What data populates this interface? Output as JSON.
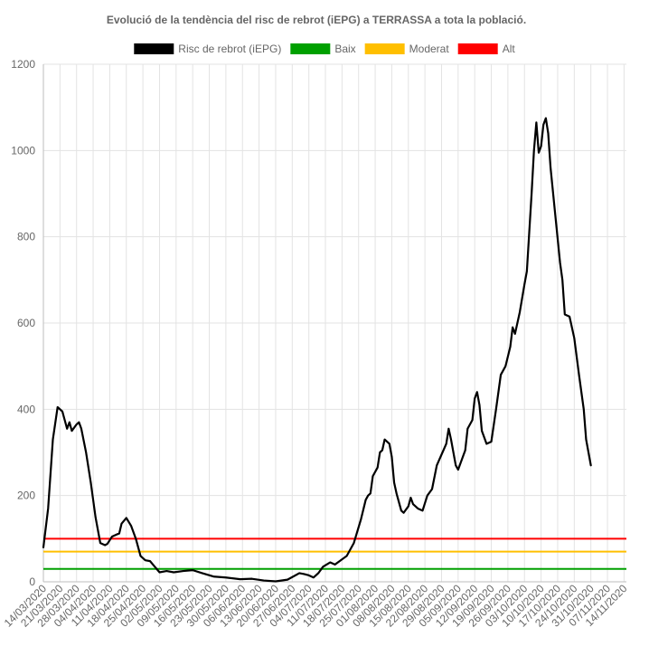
{
  "chart_data": {
    "type": "line",
    "title": "Evolució de la tendència del risc de rebrot (iEPG) a TERRASSA a tota la població.",
    "xlabel": "",
    "ylabel": "",
    "ylim": [
      0,
      1200
    ],
    "yticks": [
      "0",
      "200",
      "400",
      "600",
      "800",
      "1000",
      "1200"
    ],
    "x_start": "14/03/2020",
    "x_end": "15/11/2020",
    "xticks": [
      "14/03/2020",
      "21/03/2020",
      "28/03/2020",
      "04/04/2020",
      "11/04/2020",
      "18/04/2020",
      "25/04/2020",
      "02/05/2020",
      "09/05/2020",
      "16/05/2020",
      "23/05/2020",
      "30/05/2020",
      "06/06/2020",
      "13/06/2020",
      "20/06/2020",
      "27/06/2020",
      "04/07/2020",
      "11/07/2020",
      "18/07/2020",
      "25/07/2020",
      "01/08/2020",
      "08/08/2020",
      "15/08/2020",
      "22/08/2020",
      "29/08/2020",
      "05/09/2020",
      "12/09/2020",
      "19/09/2020",
      "26/09/2020",
      "03/10/2020",
      "10/10/2020",
      "17/10/2020",
      "24/10/2020",
      "31/10/2020",
      "07/11/2020",
      "14/11/2020"
    ],
    "grid": true,
    "legend_position": "top-center",
    "series": [
      {
        "name": "Risc de rebrot (iEPG)",
        "color": "#000000",
        "kind": "line",
        "points": [
          [
            "14/03/2020",
            80
          ],
          [
            "16/03/2020",
            170
          ],
          [
            "18/03/2020",
            330
          ],
          [
            "20/03/2020",
            405
          ],
          [
            "22/03/2020",
            395
          ],
          [
            "23/03/2020",
            375
          ],
          [
            "24/03/2020",
            355
          ],
          [
            "25/03/2020",
            370
          ],
          [
            "26/03/2020",
            350
          ],
          [
            "28/03/2020",
            365
          ],
          [
            "29/03/2020",
            370
          ],
          [
            "30/03/2020",
            355
          ],
          [
            "01/04/2020",
            300
          ],
          [
            "03/04/2020",
            230
          ],
          [
            "05/04/2020",
            150
          ],
          [
            "07/04/2020",
            90
          ],
          [
            "09/04/2020",
            85
          ],
          [
            "10/04/2020",
            88
          ],
          [
            "12/04/2020",
            105
          ],
          [
            "14/04/2020",
            110
          ],
          [
            "15/04/2020",
            112
          ],
          [
            "16/04/2020",
            135
          ],
          [
            "18/04/2020",
            148
          ],
          [
            "20/04/2020",
            130
          ],
          [
            "22/04/2020",
            100
          ],
          [
            "24/04/2020",
            60
          ],
          [
            "26/04/2020",
            50
          ],
          [
            "28/04/2020",
            48
          ],
          [
            "30/04/2020",
            35
          ],
          [
            "02/05/2020",
            22
          ],
          [
            "05/05/2020",
            25
          ],
          [
            "08/05/2020",
            22
          ],
          [
            "12/05/2020",
            25
          ],
          [
            "16/05/2020",
            27
          ],
          [
            "20/05/2020",
            20
          ],
          [
            "25/05/2020",
            12
          ],
          [
            "30/05/2020",
            10
          ],
          [
            "05/06/2020",
            6
          ],
          [
            "10/06/2020",
            7
          ],
          [
            "15/06/2020",
            3
          ],
          [
            "20/06/2020",
            1
          ],
          [
            "25/06/2020",
            5
          ],
          [
            "30/06/2020",
            20
          ],
          [
            "02/07/2020",
            18
          ],
          [
            "04/07/2020",
            15
          ],
          [
            "06/07/2020",
            10
          ],
          [
            "08/07/2020",
            20
          ],
          [
            "10/07/2020",
            35
          ],
          [
            "13/07/2020",
            45
          ],
          [
            "15/07/2020",
            40
          ],
          [
            "17/07/2020",
            48
          ],
          [
            "20/07/2020",
            60
          ],
          [
            "23/07/2020",
            90
          ],
          [
            "26/07/2020",
            145
          ],
          [
            "28/07/2020",
            190
          ],
          [
            "29/07/2020",
            200
          ],
          [
            "30/07/2020",
            205
          ],
          [
            "31/07/2020",
            245
          ],
          [
            "02/08/2020",
            265
          ],
          [
            "03/08/2020",
            300
          ],
          [
            "04/08/2020",
            305
          ],
          [
            "05/08/2020",
            330
          ],
          [
            "06/08/2020",
            325
          ],
          [
            "07/08/2020",
            320
          ],
          [
            "08/08/2020",
            290
          ],
          [
            "09/08/2020",
            230
          ],
          [
            "10/08/2020",
            205
          ],
          [
            "12/08/2020",
            165
          ],
          [
            "13/08/2020",
            160
          ],
          [
            "15/08/2020",
            175
          ],
          [
            "16/08/2020",
            195
          ],
          [
            "17/08/2020",
            180
          ],
          [
            "19/08/2020",
            170
          ],
          [
            "21/08/2020",
            165
          ],
          [
            "23/08/2020",
            200
          ],
          [
            "25/08/2020",
            215
          ],
          [
            "27/08/2020",
            270
          ],
          [
            "29/08/2020",
            295
          ],
          [
            "31/08/2020",
            320
          ],
          [
            "01/09/2020",
            355
          ],
          [
            "02/09/2020",
            330
          ],
          [
            "04/09/2020",
            270
          ],
          [
            "05/09/2020",
            260
          ],
          [
            "07/09/2020",
            290
          ],
          [
            "08/09/2020",
            305
          ],
          [
            "09/09/2020",
            355
          ],
          [
            "11/09/2020",
            375
          ],
          [
            "12/09/2020",
            425
          ],
          [
            "13/09/2020",
            440
          ],
          [
            "14/09/2020",
            410
          ],
          [
            "15/09/2020",
            350
          ],
          [
            "17/09/2020",
            320
          ],
          [
            "19/09/2020",
            325
          ],
          [
            "21/09/2020",
            400
          ],
          [
            "23/09/2020",
            480
          ],
          [
            "25/09/2020",
            500
          ],
          [
            "27/09/2020",
            545
          ],
          [
            "28/09/2020",
            590
          ],
          [
            "29/09/2020",
            575
          ],
          [
            "30/09/2020",
            600
          ],
          [
            "01/10/2020",
            625
          ],
          [
            "03/10/2020",
            690
          ],
          [
            "04/10/2020",
            720
          ],
          [
            "05/10/2020",
            810
          ],
          [
            "06/10/2020",
            900
          ],
          [
            "07/10/2020",
            1000
          ],
          [
            "08/10/2020",
            1065
          ],
          [
            "09/10/2020",
            995
          ],
          [
            "10/10/2020",
            1010
          ],
          [
            "11/10/2020",
            1060
          ],
          [
            "12/10/2020",
            1075
          ],
          [
            "13/10/2020",
            1040
          ],
          [
            "14/10/2020",
            960
          ],
          [
            "16/10/2020",
            850
          ],
          [
            "18/10/2020",
            740
          ],
          [
            "19/10/2020",
            700
          ],
          [
            "20/10/2020",
            620
          ],
          [
            "22/10/2020",
            615
          ],
          [
            "24/10/2020",
            565
          ],
          [
            "26/10/2020",
            480
          ],
          [
            "28/10/2020",
            400
          ],
          [
            "29/10/2020",
            330
          ],
          [
            "31/10/2020",
            270
          ]
        ]
      },
      {
        "name": "Baix",
        "color": "#00a000",
        "kind": "threshold",
        "value": 30
      },
      {
        "name": "Moderat",
        "color": "#ffbf00",
        "kind": "threshold",
        "value": 70
      },
      {
        "name": "Alt",
        "color": "#ff0000",
        "kind": "threshold",
        "value": 100
      }
    ]
  }
}
